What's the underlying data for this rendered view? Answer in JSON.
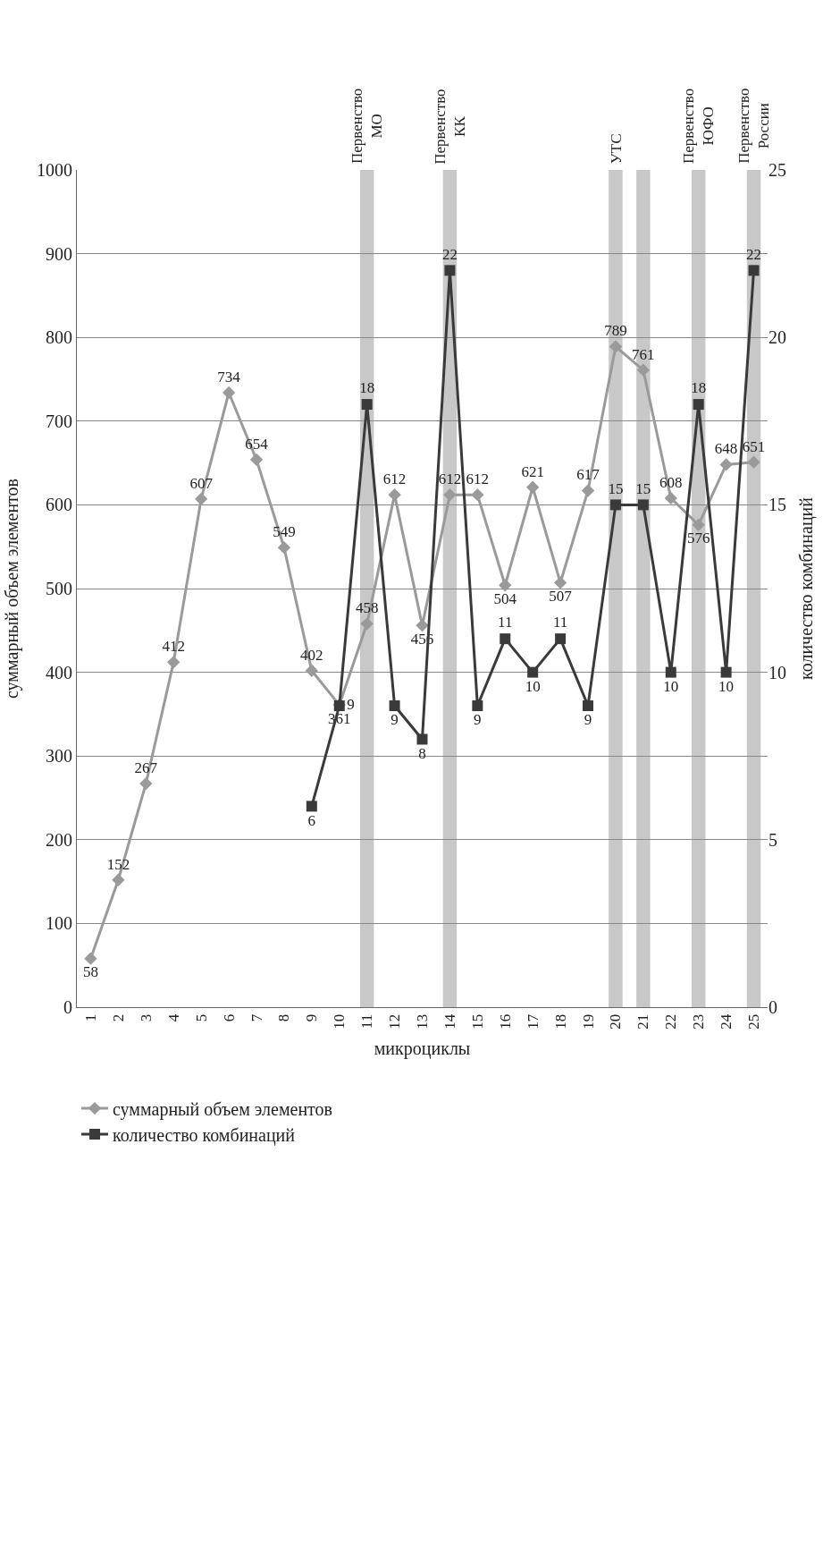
{
  "chart_data": {
    "type": "line",
    "xlabel": "микроциклы",
    "ylabel": "суммарный объем элементов",
    "y2label": "количество комбинаций",
    "categories": [
      "1",
      "2",
      "3",
      "4",
      "5",
      "6",
      "7",
      "8",
      "9",
      "10",
      "11",
      "12",
      "13",
      "14",
      "15",
      "16",
      "17",
      "18",
      "19",
      "20",
      "21",
      "22",
      "23",
      "24",
      "25"
    ],
    "series": [
      {
        "name": "суммарный объем элементов",
        "color": "#9a9a9a",
        "marker": "diamond",
        "values": [
          58,
          152,
          267,
          412,
          607,
          734,
          654,
          549,
          402,
          361,
          458,
          612,
          456,
          612,
          612,
          504,
          621,
          507,
          617,
          789,
          761,
          608,
          576,
          648,
          651
        ]
      },
      {
        "name": "количество комбинаций",
        "color": "#3a3a3a",
        "marker": "square",
        "axis": "y2",
        "values": [
          null,
          null,
          null,
          null,
          null,
          null,
          null,
          null,
          6,
          9,
          18,
          9,
          8,
          22,
          9,
          11,
          10,
          11,
          9,
          15,
          15,
          10,
          18,
          10,
          22
        ]
      }
    ],
    "ylim": [
      0,
      1000
    ],
    "yticks": [
      0,
      100,
      200,
      300,
      400,
      500,
      600,
      700,
      800,
      900,
      1000
    ],
    "y2lim": [
      0,
      25
    ],
    "y2ticks": [
      0,
      5,
      10,
      15,
      20,
      25
    ],
    "bands": [
      {
        "axis": "x",
        "from": "11",
        "to": "11",
        "label": "Первенство МО",
        "color": "#c8c8c8"
      },
      {
        "axis": "x",
        "from": "14",
        "to": "14",
        "label": "Первенство КК",
        "color": "#c8c8c8"
      },
      {
        "axis": "x",
        "from": "20",
        "to": "20",
        "label": "УТС",
        "color": "#c8c8c8"
      },
      {
        "axis": "x",
        "from": "21",
        "to": "21",
        "color": "#c8c8c8"
      },
      {
        "axis": "x",
        "from": "23",
        "to": "23",
        "label": "Первенство ЮФО",
        "color": "#c8c8c8"
      },
      {
        "axis": "x",
        "from": "25",
        "to": "25",
        "label": "Первенство России",
        "color": "#c8c8c8"
      }
    ],
    "data_labels": true,
    "grid": "y",
    "legend": "bottom",
    "line_style": "solid"
  }
}
